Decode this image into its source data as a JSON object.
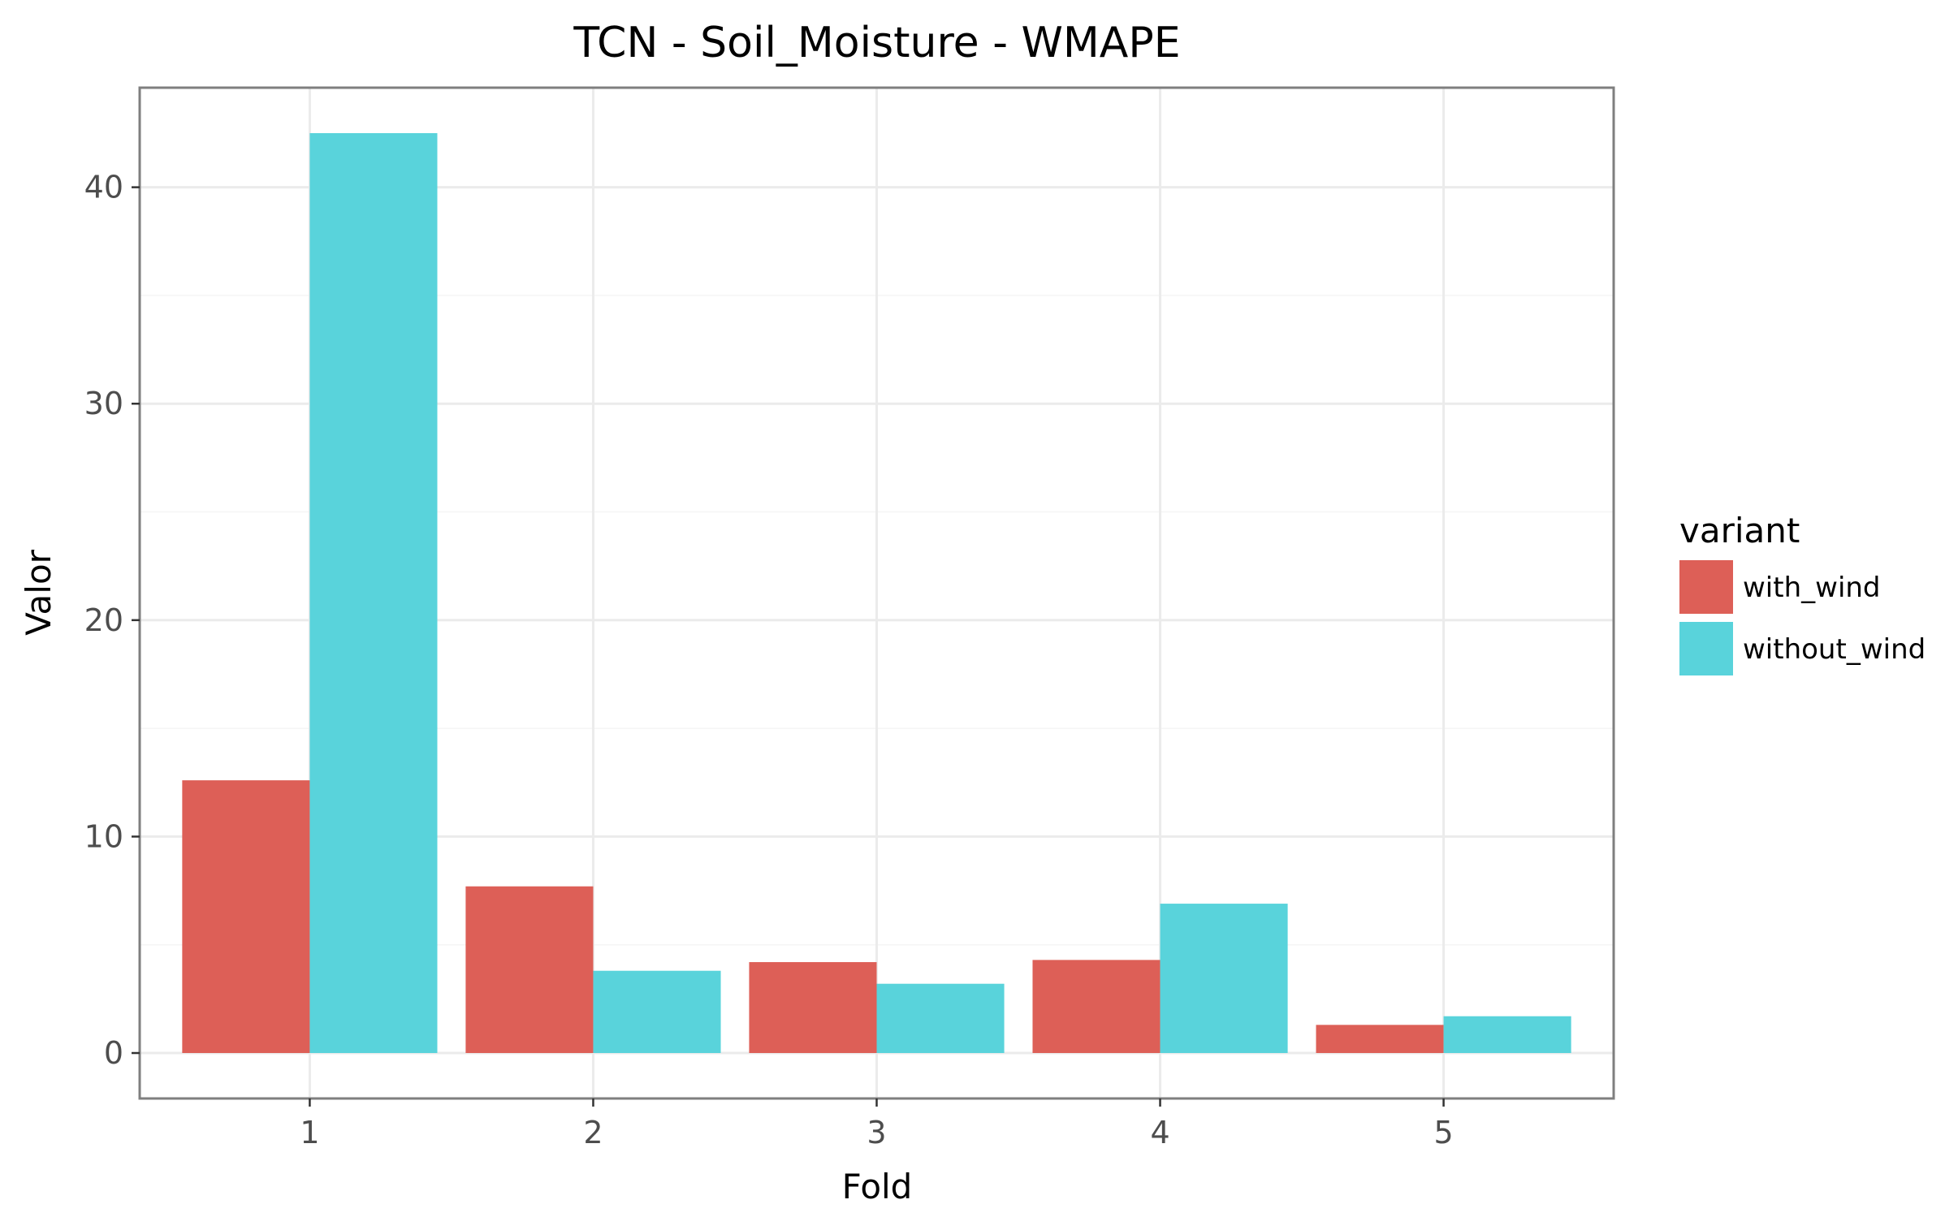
{
  "chart_data": {
    "type": "bar",
    "title": "TCN - Soil_Moisture - WMAPE",
    "xlabel": "Fold",
    "ylabel": "Valor",
    "categories": [
      "1",
      "2",
      "3",
      "4",
      "5"
    ],
    "series": [
      {
        "name": "with_wind",
        "color": "#dd5f57",
        "values": [
          12.6,
          7.7,
          4.2,
          4.3,
          1.3
        ]
      },
      {
        "name": "without_wind",
        "color": "#59d3db",
        "values": [
          42.5,
          3.8,
          3.2,
          6.9,
          1.7
        ]
      }
    ],
    "ylim": [
      -2.1,
      44.6
    ],
    "yticks": [
      0,
      10,
      20,
      30,
      40
    ],
    "yticks_minor": [
      5,
      15,
      25,
      35
    ],
    "grid": true,
    "legend": {
      "title": "variant",
      "position": "right"
    }
  }
}
